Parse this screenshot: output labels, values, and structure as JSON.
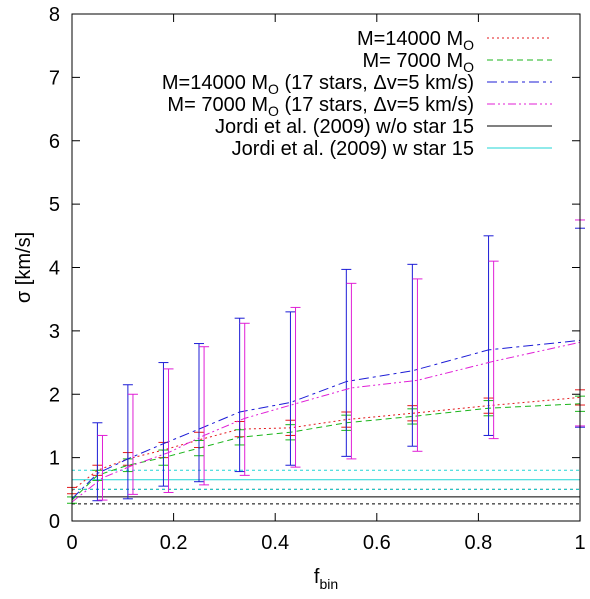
{
  "chart_data": {
    "type": "line",
    "xlabel": "f",
    "xlabel_sub": "bin",
    "ylabel": "σ [km/s]",
    "xlim": [
      0,
      1
    ],
    "ylim": [
      0,
      8
    ],
    "x_ticks": [
      "0",
      "0.2",
      "0.4",
      "0.6",
      "0.8",
      "1"
    ],
    "y_ticks": [
      "0",
      "1",
      "2",
      "3",
      "4",
      "5",
      "6",
      "7",
      "8"
    ],
    "legend_position": "top-right",
    "series": [
      {
        "name": "M=14000 M",
        "name_sub": "O",
        "color": "#e31a1c",
        "dash": "dotted",
        "x": [
          0.0,
          0.05,
          0.11,
          0.18,
          0.25,
          0.33,
          0.43,
          0.54,
          0.67,
          0.82,
          1.0
        ],
        "y": [
          0.48,
          0.8,
          0.98,
          1.12,
          1.28,
          1.45,
          1.47,
          1.6,
          1.7,
          1.82,
          1.95
        ],
        "err": [
          0.05,
          0.08,
          0.1,
          0.12,
          0.12,
          0.12,
          0.12,
          0.12,
          0.12,
          0.12,
          0.12
        ]
      },
      {
        "name": "M=  7000 M",
        "name_sub": "O",
        "color": "#1bb51b",
        "dash": "dashed",
        "x": [
          0.0,
          0.05,
          0.11,
          0.18,
          0.25,
          0.33,
          0.43,
          0.54,
          0.67,
          0.82,
          1.0
        ],
        "y": [
          0.33,
          0.72,
          0.88,
          1.0,
          1.15,
          1.32,
          1.4,
          1.55,
          1.65,
          1.78,
          1.85
        ],
        "err": [
          0.05,
          0.08,
          0.1,
          0.12,
          0.12,
          0.12,
          0.12,
          0.12,
          0.12,
          0.12,
          0.12
        ]
      },
      {
        "name": "M=14000 M",
        "name_sub": "O",
        "name_suffix": " (17 stars, Δv=5 km/s)",
        "color": "#1c1cd6",
        "dash": "dashdot",
        "x": [
          0.0,
          0.05,
          0.11,
          0.18,
          0.25,
          0.33,
          0.43,
          0.54,
          0.67,
          0.82,
          1.0
        ],
        "y": [
          0.35,
          0.75,
          0.98,
          1.22,
          1.45,
          1.72,
          1.87,
          2.2,
          2.37,
          2.7,
          2.85
        ],
        "lo": [
          0.0,
          0.32,
          0.35,
          0.55,
          0.62,
          0.78,
          0.88,
          1.02,
          1.18,
          1.35,
          1.48
        ],
        "hi": [
          0.0,
          1.55,
          2.15,
          2.5,
          2.8,
          3.2,
          3.3,
          3.97,
          4.05,
          4.5,
          4.62
        ]
      },
      {
        "name": "M=  7000 M",
        "name_sub": "O",
        "name_suffix": " (17 stars, Δv=5 km/s)",
        "color": "#e01fd6",
        "dash": "dashdotdot",
        "x": [
          0.0,
          0.06,
          0.12,
          0.19,
          0.26,
          0.34,
          0.44,
          0.55,
          0.68,
          0.83,
          1.0
        ],
        "y": [
          0.3,
          0.68,
          0.88,
          1.08,
          1.35,
          1.62,
          1.85,
          2.1,
          2.22,
          2.52,
          2.82
        ],
        "lo": [
          0.0,
          0.33,
          0.42,
          0.45,
          0.57,
          0.72,
          0.85,
          0.98,
          1.1,
          1.3,
          1.5
        ],
        "hi": [
          0.0,
          1.35,
          2.0,
          2.4,
          2.75,
          3.12,
          3.37,
          3.75,
          3.82,
          4.1,
          4.75
        ]
      },
      {
        "name": "Jordi et al. (2009) w/o star 15",
        "color": "#000000",
        "dash": "solid",
        "type": "hline",
        "value": 0.38,
        "band": [
          0.27,
          0.5
        ]
      },
      {
        "name": "Jordi et al. (2009)   w  star 15",
        "color": "#22d6d6",
        "dash": "solid",
        "type": "hline",
        "value": 0.65,
        "band": [
          0.5,
          0.8
        ]
      }
    ]
  }
}
